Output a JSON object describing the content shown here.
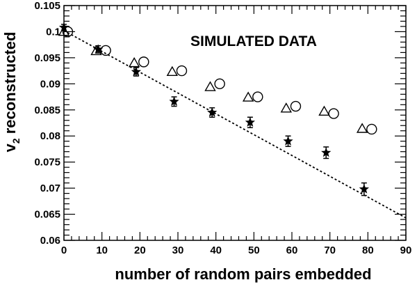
{
  "chart_data": {
    "type": "scatter",
    "title": "",
    "annotation": "SIMULATED DATA",
    "xlabel": "number of random pairs embedded",
    "ylabel_prefix": "v",
    "ylabel_subscript": "2",
    "ylabel_suffix": " reconstructed",
    "xlim": [
      0,
      90
    ],
    "ylim": [
      0.06,
      0.105
    ],
    "x_ticks": [
      "0",
      "10",
      "20",
      "30",
      "40",
      "50",
      "60",
      "70",
      "80",
      "90"
    ],
    "y_ticks": [
      "0.06",
      "0.065",
      "0.07",
      "0.075",
      "0.08",
      "0.085",
      "0.09",
      "0.095",
      "0.1",
      "0.105"
    ],
    "grid": false,
    "legend": "none",
    "series": [
      {
        "marker": "star",
        "x": [
          0,
          9,
          19,
          29,
          39,
          49,
          59,
          69,
          79
        ],
        "y": [
          0.1008,
          0.0966,
          0.0923,
          0.0866,
          0.0845,
          0.0826,
          0.079,
          0.0768,
          0.0698
        ],
        "yerr": [
          0.0006,
          0.0007,
          0.0008,
          0.0009,
          0.0009,
          0.001,
          0.001,
          0.0011,
          0.0012
        ]
      },
      {
        "marker": "open-triangle",
        "x": [
          0,
          8.5,
          18.5,
          28.5,
          38.5,
          48.5,
          58.5,
          68.5,
          78.5
        ],
        "y": [
          0.1,
          0.0963,
          0.094,
          0.0923,
          0.0894,
          0.0874,
          0.0853,
          0.0847,
          0.0814
        ]
      },
      {
        "marker": "open-circle",
        "x": [
          1,
          11,
          21,
          31,
          41,
          51,
          61,
          71,
          81
        ],
        "y": [
          0.1,
          0.0964,
          0.0942,
          0.0925,
          0.09,
          0.0875,
          0.0857,
          0.0843,
          0.0813
        ]
      }
    ],
    "fit_line": {
      "style": "dotted",
      "x": [
        0,
        90
      ],
      "y": [
        0.1002,
        0.0643
      ]
    }
  }
}
